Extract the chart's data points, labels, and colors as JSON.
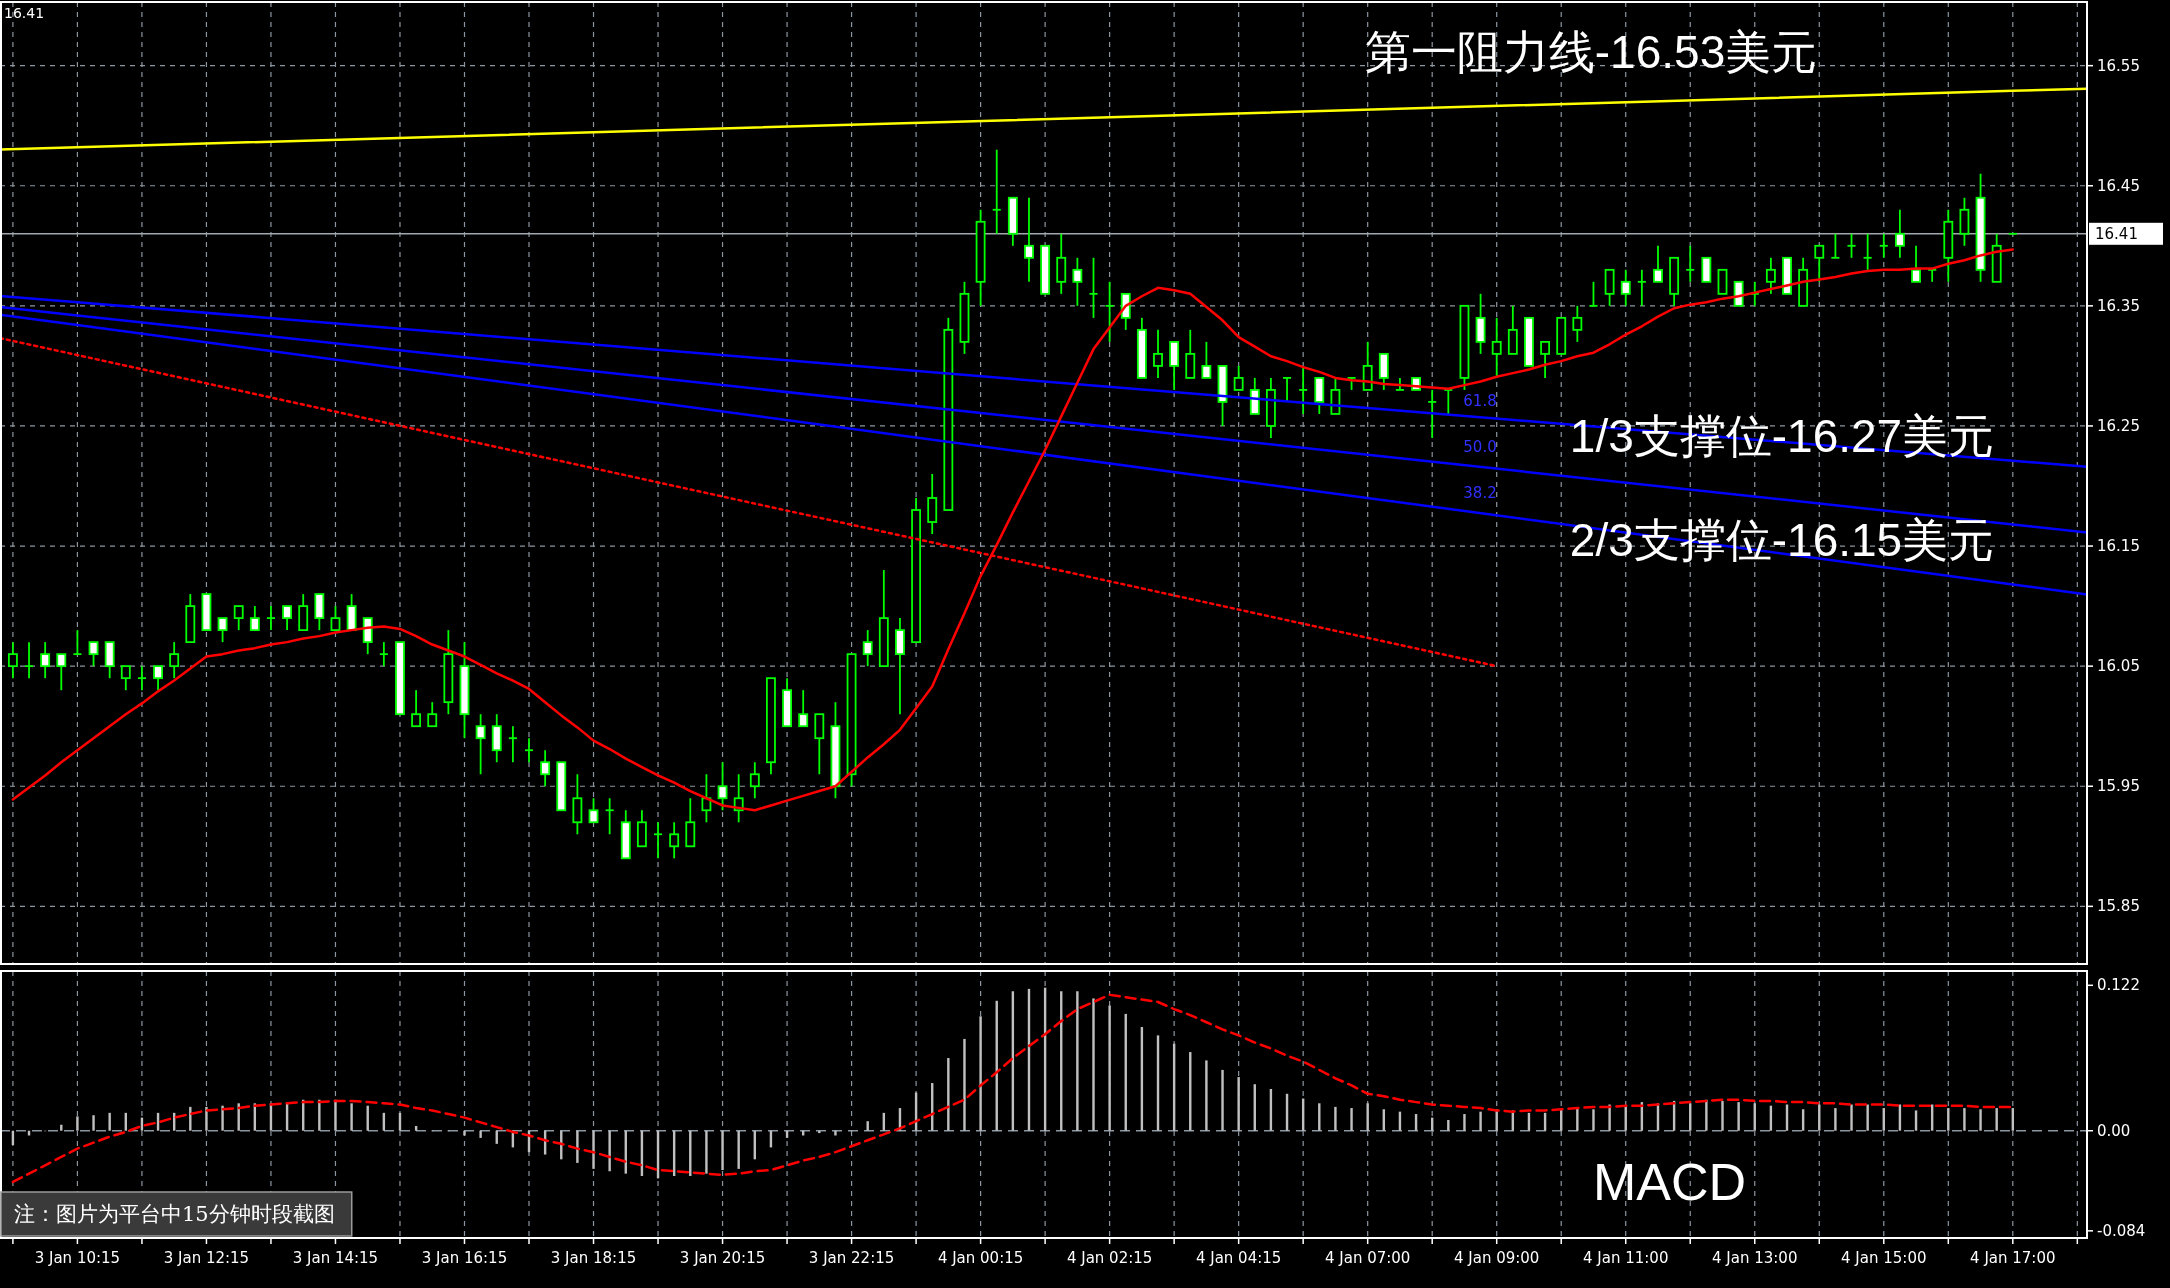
{
  "chart_data": [
    {
      "type": "candlestick",
      "color": "#00ff00",
      "categories": [
        null,
        null,
        null,
        null,
        "3 Jan 10:15",
        null,
        null,
        null,
        null,
        null,
        null,
        null,
        "3 Jan 12:15",
        null,
        null,
        null,
        null,
        null,
        null,
        null,
        "3 Jan 14:15",
        null,
        null,
        null,
        null,
        null,
        null,
        null,
        "3 Jan 16:15",
        null,
        null,
        null,
        null,
        null,
        null,
        null,
        "3 Jan 18:15",
        null,
        null,
        null,
        null,
        null,
        null,
        null,
        "3 Jan 20:15",
        null,
        null,
        null,
        null,
        null,
        null,
        null,
        "3 Jan 22:15",
        null,
        null,
        null,
        null,
        null,
        null,
        null,
        "4 Jan 00:15",
        null,
        null,
        null,
        null,
        null,
        null,
        null,
        "4 Jan 02:15",
        null,
        null,
        null,
        null,
        null,
        null,
        null,
        "4 Jan 04:15",
        null,
        null,
        null,
        null,
        null,
        null,
        null,
        "4 Jan 07:00",
        null,
        null,
        null,
        null,
        null,
        null,
        null,
        "4 Jan 09:00",
        null,
        null,
        null,
        null,
        null,
        null,
        null,
        "4 Jan 11:00",
        null,
        null,
        null,
        null,
        null,
        null,
        null,
        "4 Jan 13:00",
        null,
        null,
        null,
        null,
        null,
        null,
        null,
        "4 Jan 15:00",
        null,
        null,
        null,
        null,
        null,
        null,
        null,
        "4 Jan 17:00"
      ],
      "ohlc": [
        [
          16.05,
          16.07,
          16.04,
          16.06
        ],
        [
          16.05,
          16.07,
          16.04,
          16.05
        ],
        [
          16.06,
          16.07,
          16.04,
          16.05
        ],
        [
          16.06,
          16.06,
          16.03,
          16.05
        ],
        [
          16.06,
          16.08,
          16.06,
          16.06
        ],
        [
          16.07,
          16.07,
          16.05,
          16.06
        ],
        [
          16.07,
          16.07,
          16.04,
          16.05
        ],
        [
          16.04,
          16.05,
          16.03,
          16.05
        ],
        [
          16.04,
          16.05,
          16.03,
          16.04
        ],
        [
          16.05,
          16.05,
          16.03,
          16.04
        ],
        [
          16.05,
          16.07,
          16.04,
          16.06
        ],
        [
          16.07,
          16.11,
          16.07,
          16.1
        ],
        [
          16.11,
          16.11,
          16.08,
          16.08
        ],
        [
          16.09,
          16.09,
          16.07,
          16.08
        ],
        [
          16.09,
          16.1,
          16.08,
          16.1
        ],
        [
          16.09,
          16.1,
          16.08,
          16.08
        ],
        [
          16.09,
          16.1,
          16.08,
          16.09
        ],
        [
          16.1,
          16.1,
          16.08,
          16.09
        ],
        [
          16.08,
          16.11,
          16.08,
          16.1
        ],
        [
          16.11,
          16.11,
          16.08,
          16.09
        ],
        [
          16.08,
          16.1,
          16.08,
          16.09
        ],
        [
          16.1,
          16.11,
          16.08,
          16.08
        ],
        [
          16.09,
          16.09,
          16.06,
          16.07
        ],
        [
          16.06,
          16.07,
          16.05,
          16.06
        ],
        [
          16.07,
          16.07,
          16.01,
          16.01
        ],
        [
          16.0,
          16.03,
          16.0,
          16.01
        ],
        [
          16.0,
          16.02,
          16.0,
          16.01
        ],
        [
          16.02,
          16.08,
          16.01,
          16.06
        ],
        [
          16.05,
          16.07,
          15.99,
          16.01
        ],
        [
          16.0,
          16.01,
          15.96,
          15.99
        ],
        [
          16.0,
          16.01,
          15.97,
          15.98
        ],
        [
          15.99,
          16.0,
          15.97,
          15.99
        ],
        [
          15.98,
          15.99,
          15.97,
          15.98
        ],
        [
          15.97,
          15.98,
          15.95,
          15.96
        ],
        [
          15.97,
          15.97,
          15.93,
          15.93
        ],
        [
          15.92,
          15.96,
          15.91,
          15.94
        ],
        [
          15.93,
          15.94,
          15.92,
          15.92
        ],
        [
          15.93,
          15.94,
          15.91,
          15.93
        ],
        [
          15.92,
          15.93,
          15.89,
          15.89
        ],
        [
          15.9,
          15.93,
          15.9,
          15.92
        ],
        [
          15.91,
          15.92,
          15.89,
          15.91
        ],
        [
          15.9,
          15.92,
          15.89,
          15.91
        ],
        [
          15.9,
          15.94,
          15.9,
          15.92
        ],
        [
          15.93,
          15.96,
          15.92,
          15.94
        ],
        [
          15.95,
          15.97,
          15.93,
          15.94
        ],
        [
          15.93,
          15.96,
          15.92,
          15.94
        ],
        [
          15.95,
          15.97,
          15.94,
          15.96
        ],
        [
          15.97,
          16.04,
          15.96,
          16.04
        ],
        [
          16.03,
          16.04,
          16.0,
          16.0
        ],
        [
          16.01,
          16.03,
          16.0,
          16.0
        ],
        [
          15.99,
          16.01,
          15.96,
          16.01
        ],
        [
          16.0,
          16.02,
          15.94,
          15.95
        ],
        [
          15.96,
          16.06,
          15.95,
          16.06
        ],
        [
          16.07,
          16.08,
          16.05,
          16.06
        ],
        [
          16.05,
          16.13,
          16.05,
          16.09
        ],
        [
          16.08,
          16.09,
          16.01,
          16.06
        ],
        [
          16.07,
          16.19,
          16.07,
          16.18
        ],
        [
          16.17,
          16.21,
          16.16,
          16.19
        ],
        [
          16.18,
          16.34,
          16.18,
          16.33
        ],
        [
          16.32,
          16.37,
          16.31,
          16.36
        ],
        [
          16.37,
          16.43,
          16.35,
          16.42
        ],
        [
          16.43,
          16.48,
          16.41,
          16.43
        ],
        [
          16.44,
          16.44,
          16.4,
          16.41
        ],
        [
          16.4,
          16.44,
          16.37,
          16.39
        ],
        [
          16.4,
          16.4,
          16.36,
          16.36
        ],
        [
          16.37,
          16.41,
          16.36,
          16.39
        ],
        [
          16.38,
          16.39,
          16.35,
          16.37
        ],
        [
          16.36,
          16.39,
          16.34,
          16.36
        ],
        [
          16.35,
          16.37,
          16.32,
          16.35
        ],
        [
          16.36,
          16.36,
          16.33,
          16.34
        ],
        [
          16.33,
          16.34,
          16.29,
          16.29
        ],
        [
          16.3,
          16.33,
          16.29,
          16.31
        ],
        [
          16.32,
          16.32,
          16.28,
          16.3
        ],
        [
          16.29,
          16.33,
          16.29,
          16.31
        ],
        [
          16.3,
          16.32,
          16.29,
          16.29
        ],
        [
          16.3,
          16.3,
          16.25,
          16.27
        ],
        [
          16.28,
          16.3,
          16.28,
          16.29
        ],
        [
          16.28,
          16.29,
          16.26,
          16.26
        ],
        [
          16.25,
          16.29,
          16.24,
          16.28
        ],
        [
          16.29,
          16.29,
          16.27,
          16.29
        ],
        [
          16.28,
          16.3,
          16.26,
          16.28
        ],
        [
          16.29,
          16.29,
          16.26,
          16.27
        ],
        [
          16.26,
          16.29,
          16.26,
          16.28
        ],
        [
          16.29,
          16.29,
          16.28,
          16.29
        ],
        [
          16.28,
          16.32,
          16.28,
          16.3
        ],
        [
          16.31,
          16.31,
          16.28,
          16.29
        ],
        [
          16.28,
          16.29,
          16.28,
          16.28
        ],
        [
          16.29,
          16.29,
          16.28,
          16.28
        ],
        [
          16.27,
          16.28,
          16.24,
          16.27
        ],
        [
          16.28,
          16.28,
          16.26,
          16.28
        ],
        [
          16.29,
          16.35,
          16.28,
          16.35
        ],
        [
          16.34,
          16.36,
          16.31,
          16.32
        ],
        [
          16.31,
          16.34,
          16.29,
          16.32
        ],
        [
          16.31,
          16.35,
          16.31,
          16.33
        ],
        [
          16.34,
          16.34,
          16.3,
          16.3
        ],
        [
          16.31,
          16.32,
          16.29,
          16.32
        ],
        [
          16.31,
          16.34,
          16.31,
          16.34
        ],
        [
          16.33,
          16.35,
          16.32,
          16.34
        ],
        [
          16.35,
          16.37,
          16.35,
          16.35
        ],
        [
          16.36,
          16.38,
          16.35,
          16.38
        ],
        [
          16.37,
          16.38,
          16.35,
          16.36
        ],
        [
          16.37,
          16.38,
          16.35,
          16.37
        ],
        [
          16.38,
          16.4,
          16.37,
          16.37
        ],
        [
          16.36,
          16.39,
          16.35,
          16.39
        ],
        [
          16.38,
          16.4,
          16.37,
          16.38
        ],
        [
          16.39,
          16.39,
          16.37,
          16.37
        ],
        [
          16.36,
          16.38,
          16.36,
          16.38
        ],
        [
          16.37,
          16.37,
          16.35,
          16.35
        ],
        [
          16.36,
          16.37,
          16.35,
          16.36
        ],
        [
          16.37,
          16.39,
          16.36,
          16.38
        ],
        [
          16.39,
          16.39,
          16.36,
          16.36
        ],
        [
          16.35,
          16.39,
          16.35,
          16.38
        ],
        [
          16.39,
          16.4,
          16.37,
          16.4
        ],
        [
          16.39,
          16.41,
          16.39,
          16.39
        ],
        [
          16.4,
          16.41,
          16.39,
          16.4
        ],
        [
          16.39,
          16.41,
          16.38,
          16.39
        ],
        [
          16.4,
          16.41,
          16.39,
          16.4
        ],
        [
          16.41,
          16.43,
          16.39,
          16.4
        ],
        [
          16.38,
          16.4,
          16.37,
          16.37
        ],
        [
          16.38,
          16.38,
          16.37,
          16.38
        ],
        [
          16.39,
          16.43,
          16.37,
          16.42
        ],
        [
          16.41,
          16.44,
          16.4,
          16.43
        ],
        [
          16.44,
          16.46,
          16.37,
          16.38
        ],
        [
          16.37,
          16.41,
          16.37,
          16.4
        ],
        [
          16.41,
          16.41,
          16.41,
          16.41
        ]
      ],
      "series": [
        {
          "type": "line",
          "color": "#ffff00",
          "x": [
            "3 Jan 10:15",
            "4 Jan 17:00"
          ],
          "values": [
            16.482,
            16.529
          ]
        },
        {
          "type": "line",
          "color": "#0000ff",
          "x": [
            "3 Jan 10:15",
            "4 Jan 17:00"
          ],
          "values": [
            16.353,
            16.221
          ]
        },
        {
          "type": "line",
          "color": "#0000fe",
          "x": [
            "3 Jan 10:15",
            "4 Jan 17:00"
          ],
          "values": [
            16.342,
            16.168
          ]
        },
        {
          "type": "line",
          "color": "#0000fd",
          "x": [
            "3 Jan 10:15",
            "4 Jan 17:00"
          ],
          "values": [
            16.334,
            16.118
          ]
        },
        {
          "type": "line",
          "color": "#ff0000",
          "line_style": "dotted",
          "x": [
            "3 Jan 10:15",
            "4 Jan 09:00"
          ],
          "values": [
            16.309,
            16.05
          ]
        },
        {
          "type": "line",
          "color": "#ff0000",
          "values": [
            15.939,
            15.949,
            15.959,
            15.97,
            15.98,
            15.99,
            16.0,
            16.01,
            16.019,
            16.029,
            16.038,
            16.048,
            16.058,
            16.06,
            16.063,
            16.065,
            16.068,
            16.07,
            16.073,
            16.075,
            16.078,
            16.08,
            16.082,
            16.083,
            16.081,
            16.075,
            16.068,
            16.063,
            16.058,
            16.051,
            16.044,
            16.038,
            16.031,
            16.02,
            16.009,
            15.999,
            15.988,
            15.981,
            15.973,
            15.966,
            15.959,
            15.953,
            15.946,
            15.94,
            15.934,
            15.932,
            15.93,
            15.934,
            15.938,
            15.942,
            15.946,
            15.95,
            15.962,
            15.974,
            15.985,
            15.997,
            16.015,
            16.033,
            16.064,
            16.094,
            16.125,
            16.151,
            16.178,
            16.204,
            16.23,
            16.258,
            16.286,
            16.314,
            16.332,
            16.35,
            16.358,
            16.365,
            16.363,
            16.36,
            16.349,
            16.338,
            16.324,
            16.316,
            16.308,
            16.304,
            16.299,
            16.295,
            16.29,
            16.288,
            16.287,
            16.285,
            16.284,
            16.283,
            16.282,
            16.281,
            16.284,
            16.287,
            16.291,
            16.294,
            16.297,
            16.301,
            16.304,
            16.308,
            16.311,
            16.318,
            16.326,
            16.333,
            16.341,
            16.348,
            16.351,
            16.353,
            16.356,
            16.358,
            16.361,
            16.364,
            16.367,
            16.37,
            16.372,
            16.374,
            16.377,
            16.379,
            16.38,
            16.38,
            16.381,
            16.381,
            16.385,
            16.388,
            16.392,
            16.395,
            16.397
          ]
        }
      ],
      "ylim": [
        15.802,
        16.603
      ],
      "yticks": [
        15.85,
        15.95,
        16.05,
        16.15,
        16.25,
        16.35,
        16.45,
        16.55
      ],
      "grid": true,
      "tick_labels": "y",
      "ref_lines": [
        {
          "axis": "y",
          "value": 16.41,
          "label": "16.41",
          "color": "#a0a8b0"
        }
      ],
      "annotations": [
        "16.41",
        "第一阻力线-16.53美元",
        "1/3支撑位-16.27美元",
        "2/3支撑位-16.15美元",
        "61.8",
        "50.0",
        "38.2"
      ]
    },
    {
      "type": "bar",
      "title": "MACD",
      "categories": [
        null,
        null,
        null,
        null,
        "3 Jan 10:15",
        null,
        null,
        null,
        null,
        null,
        null,
        null,
        "3 Jan 12:15",
        null,
        null,
        null,
        null,
        null,
        null,
        null,
        "3 Jan 14:15",
        null,
        null,
        null,
        null,
        null,
        null,
        null,
        "3 Jan 16:15",
        null,
        null,
        null,
        null,
        null,
        null,
        null,
        "3 Jan 18:15",
        null,
        null,
        null,
        null,
        null,
        null,
        null,
        "3 Jan 20:15",
        null,
        null,
        null,
        null,
        null,
        null,
        null,
        "3 Jan 22:15",
        null,
        null,
        null,
        null,
        null,
        null,
        null,
        "4 Jan 00:15",
        null,
        null,
        null,
        null,
        null,
        null,
        null,
        "4 Jan 02:15",
        null,
        null,
        null,
        null,
        null,
        null,
        null,
        "4 Jan 04:15",
        null,
        null,
        null,
        null,
        null,
        null,
        null,
        "4 Jan 07:00",
        null,
        null,
        null,
        null,
        null,
        null,
        null,
        "4 Jan 09:00",
        null,
        null,
        null,
        null,
        null,
        null,
        null,
        "4 Jan 11:00",
        null,
        null,
        null,
        null,
        null,
        null,
        null,
        "4 Jan 13:00",
        null,
        null,
        null,
        null,
        null,
        null,
        null,
        "4 Jan 15:00",
        null,
        null,
        null,
        null,
        null,
        null,
        null,
        "4 Jan 17:00"
      ],
      "series": [
        {
          "type": "bar",
          "color": "#c0c0c0",
          "values": [
            -0.012,
            -0.004,
            0,
            0.005,
            0.012,
            0.013,
            0.015,
            0.015,
            0.011,
            0.015,
            0.015,
            0.02,
            0.02,
            0.021,
            0.023,
            0.023,
            0.023,
            0.023,
            0.026,
            0.026,
            0.026,
            0.023,
            0.021,
            0.015,
            0.015,
            0.004,
            0,
            0,
            -0.004,
            -0.006,
            -0.011,
            -0.014,
            -0.018,
            -0.02,
            -0.024,
            -0.027,
            -0.032,
            -0.034,
            -0.036,
            -0.038,
            -0.04,
            -0.038,
            -0.038,
            -0.036,
            -0.033,
            -0.032,
            -0.024,
            -0.014,
            -0.006,
            -0.004,
            -0.002,
            -0.004,
            0,
            0.008,
            0.015,
            0.019,
            0.032,
            0.04,
            0.061,
            0.077,
            0.096,
            0.109,
            0.117,
            0.119,
            0.12,
            0.117,
            0.117,
            0.111,
            0.105,
            0.098,
            0.087,
            0.08,
            0.073,
            0.066,
            0.059,
            0.051,
            0.045,
            0.039,
            0.035,
            0.031,
            0.027,
            0.023,
            0.02,
            0.019,
            0.023,
            0.018,
            0.016,
            0.014,
            0.011,
            0.009,
            0.014,
            0.016,
            0.018,
            0.017,
            0.015,
            0.015,
            0.018,
            0.019,
            0.018,
            0.022,
            0.02,
            0.024,
            0.023,
            0.025,
            0.023,
            0.026,
            0.025,
            0.024,
            0.023,
            0.021,
            0.022,
            0.018,
            0.022,
            0.019,
            0.022,
            0.022,
            0.019,
            0.022,
            0.017,
            0.022,
            0.019,
            0.019,
            0.018,
            0.019,
            0.019
          ]
        },
        {
          "type": "line",
          "color": "#ff0000",
          "line_style": "dashed",
          "values": [
            -0.043,
            -0.036,
            -0.029,
            -0.022,
            -0.015,
            -0.01,
            -0.005,
            -0.001,
            0.004,
            0.007,
            0.011,
            0.014,
            0.017,
            0.018,
            0.019,
            0.021,
            0.022,
            0.023,
            0.024,
            0.024,
            0.025,
            0.025,
            0.024,
            0.023,
            0.022,
            0.019,
            0.017,
            0.014,
            0.011,
            0.007,
            0.003,
            -0.001,
            -0.004,
            -0.008,
            -0.011,
            -0.015,
            -0.018,
            -0.022,
            -0.026,
            -0.029,
            -0.033,
            -0.034,
            -0.035,
            -0.036,
            -0.037,
            -0.036,
            -0.034,
            -0.033,
            -0.029,
            -0.025,
            -0.022,
            -0.018,
            -0.013,
            -0.008,
            -0.003,
            0.002,
            0.008,
            0.014,
            0.02,
            0.026,
            0.038,
            0.049,
            0.061,
            0.071,
            0.081,
            0.092,
            0.102,
            0.108,
            0.114,
            0.112,
            0.11,
            0.108,
            0.102,
            0.097,
            0.091,
            0.085,
            0.08,
            0.074,
            0.069,
            0.063,
            0.058,
            0.051,
            0.044,
            0.038,
            0.031,
            0.029,
            0.026,
            0.024,
            0.022,
            0.021,
            0.02,
            0.019,
            0.017,
            0.016,
            0.017,
            0.017,
            0.018,
            0.019,
            0.02,
            0.02,
            0.021,
            0.021,
            0.022,
            0.023,
            0.024,
            0.025,
            0.026,
            0.026,
            0.025,
            0.025,
            0.024,
            0.024,
            0.023,
            0.023,
            0.022,
            0.022,
            0.022,
            0.021,
            0.021,
            0.021,
            0.021,
            0.021,
            0.02,
            0.02,
            0.02
          ]
        }
      ],
      "ylim": [
        -0.09,
        0.134
      ],
      "yticks": [
        -0.084,
        {
          "value": 0,
          "label": "0.00"
        },
        0.122
      ],
      "grid": "x",
      "ref_lines": [
        {
          "axis": "y",
          "value": 0,
          "color": "#8c96a0",
          "line_style": "dashed"
        }
      ],
      "annotations": [
        "注：图片为平台中15分钟时段截图"
      ]
    }
  ]
}
